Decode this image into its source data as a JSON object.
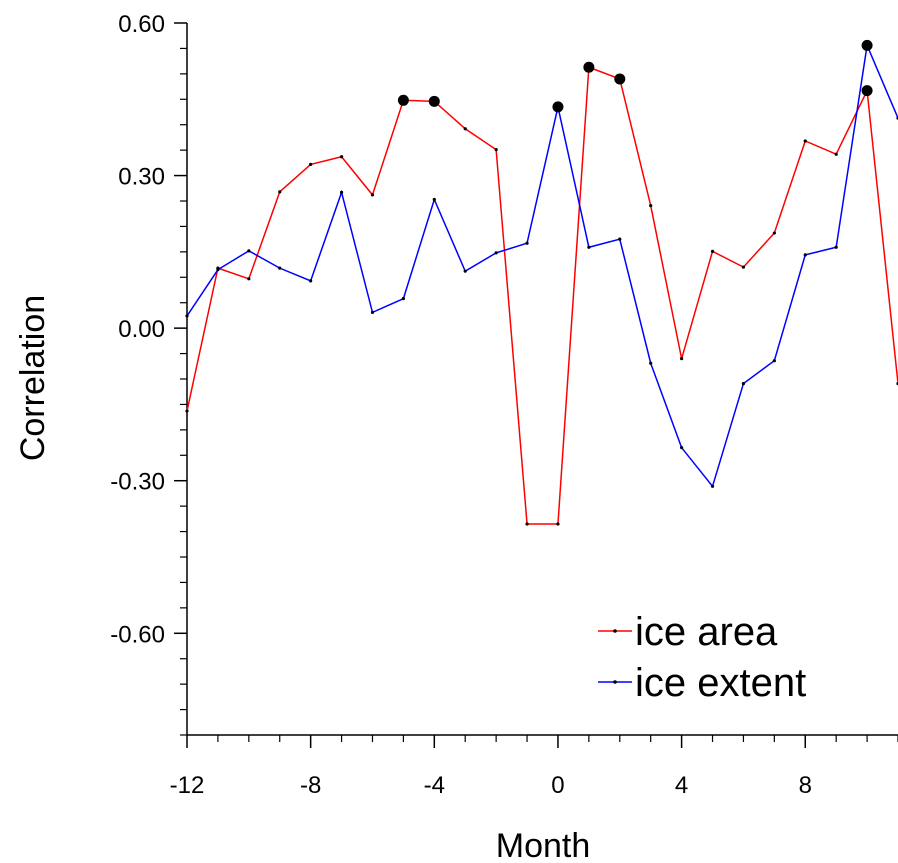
{
  "chart_data": {
    "type": "line",
    "xlabel": "Month",
    "ylabel": "Correlation",
    "xlim": [
      -12,
      11
    ],
    "ylim": [
      -0.8,
      0.6
    ],
    "x_ticks": [
      -12,
      -8,
      -4,
      0,
      4,
      8
    ],
    "x_tick_labels": [
      "-12",
      "-8",
      "-4",
      "0",
      "4",
      "8"
    ],
    "y_ticks": [
      0.6,
      0.3,
      0.0,
      -0.3,
      -0.6
    ],
    "y_tick_labels": [
      "0.60",
      "0.30",
      "0.00",
      "-0.30",
      "-0.60"
    ],
    "grid": false,
    "legend_position": "bottom-right",
    "x": [
      -12,
      -11,
      -10,
      -9,
      -8,
      -7,
      -6,
      -5,
      -4,
      -3,
      -2,
      -1,
      0,
      1,
      2,
      3,
      4,
      5,
      6,
      7,
      8,
      9,
      10,
      11
    ],
    "series": [
      {
        "name": "ice area",
        "color": "#ff0000",
        "values": [
          -0.163,
          0.118,
          0.097,
          0.268,
          0.322,
          0.337,
          0.262,
          0.448,
          0.446,
          0.392,
          0.351,
          -0.385,
          -0.385,
          0.513,
          0.49,
          0.241,
          -0.06,
          0.151,
          0.12,
          0.187,
          0.368,
          0.342,
          0.467,
          -0.109
        ],
        "significant_x": [
          -5,
          -4,
          1,
          2,
          10
        ]
      },
      {
        "name": "ice extent",
        "color": "#0000ff",
        "values": [
          0.024,
          0.115,
          0.152,
          0.118,
          0.093,
          0.267,
          0.031,
          0.058,
          0.253,
          0.112,
          0.148,
          0.167,
          0.435,
          0.159,
          0.175,
          -0.069,
          -0.235,
          -0.311,
          -0.109,
          -0.064,
          0.144,
          0.159,
          0.556,
          0.413
        ],
        "significant_x": [
          0,
          10
        ]
      }
    ]
  }
}
